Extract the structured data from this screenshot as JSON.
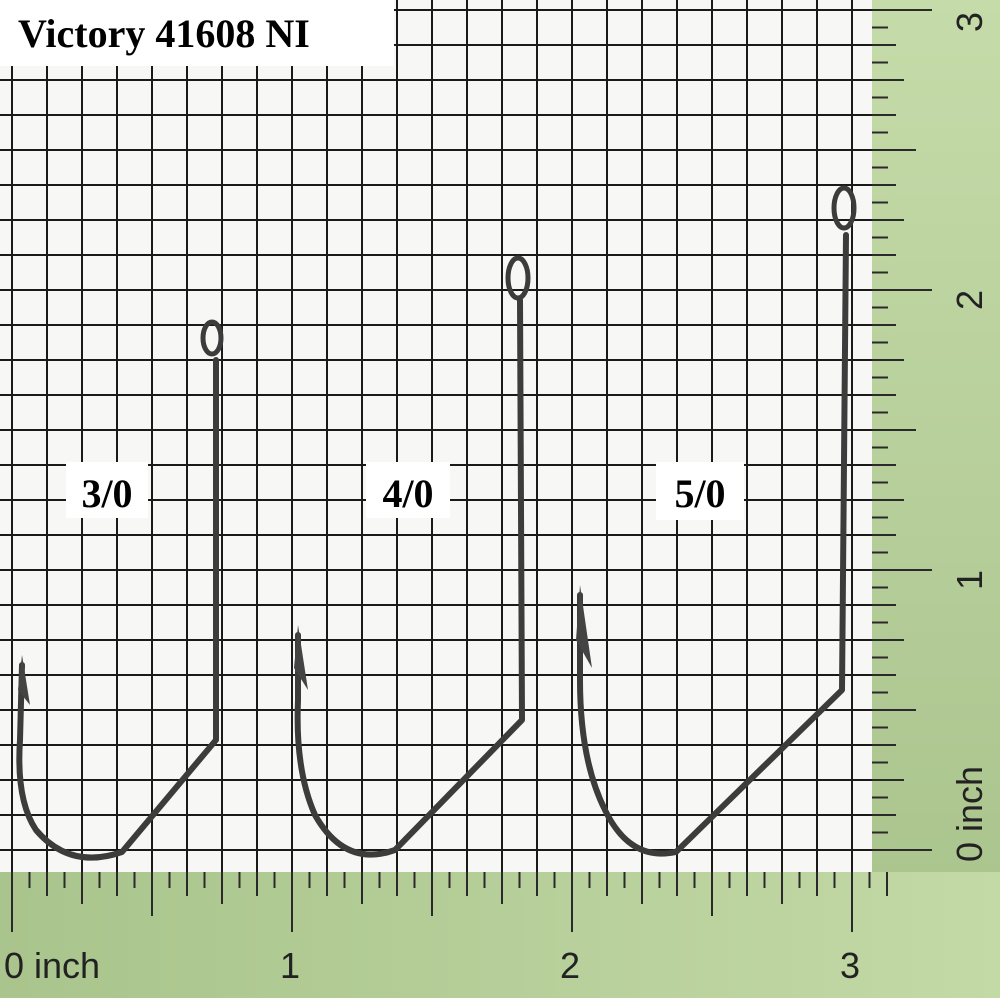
{
  "title": "Victory 41608 NI",
  "hooks": [
    {
      "label": "3/0"
    },
    {
      "label": "4/0"
    },
    {
      "label": "5/0"
    }
  ],
  "rulers": {
    "bottom": {
      "labels": [
        "0 inch",
        "1",
        "2",
        "3"
      ]
    },
    "right": {
      "labels": [
        "0 inch",
        "1",
        "2",
        "3"
      ]
    }
  }
}
